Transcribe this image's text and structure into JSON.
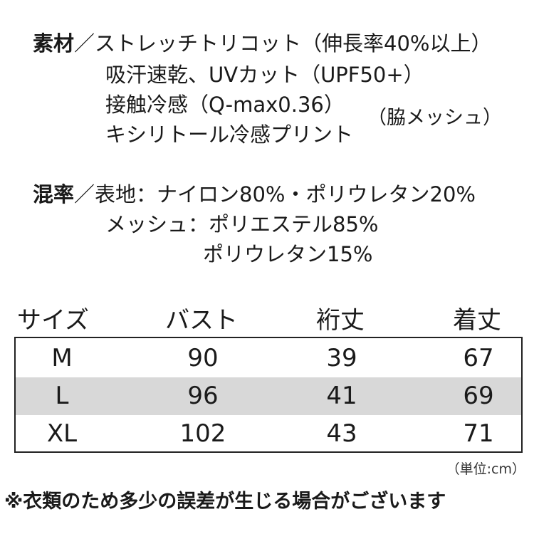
{
  "material": {
    "label": "素材",
    "separator": "／",
    "lines": [
      "ストレッチトリコット（伸長率40%以上）",
      "吸汗速乾、UVカット（UPF50+）",
      "接触冷感（Q-max0.36）",
      "キシリトール冷感プリント"
    ],
    "side_note": "（脇メッシュ）"
  },
  "blend": {
    "label": "混率",
    "separator": "／",
    "lines": [
      "表地：ナイロン80%・ポリウレタン20%",
      "メッシュ：ポリエステル85%",
      "ポリウレタン15%"
    ]
  },
  "size_table": {
    "headers": [
      "サイズ",
      "バスト",
      "裄丈",
      "着丈"
    ],
    "rows": [
      {
        "size": "M",
        "bust": "90",
        "sleeve": "39",
        "length": "67"
      },
      {
        "size": "L",
        "bust": "96",
        "sleeve": "41",
        "length": "69"
      },
      {
        "size": "XL",
        "bust": "102",
        "sleeve": "43",
        "length": "71"
      }
    ],
    "unit_note": "（単位:cm）",
    "shaded_row_color": "#d8d8d8"
  },
  "footnote": "※衣類のため多少の誤差が生じる場合がございます"
}
